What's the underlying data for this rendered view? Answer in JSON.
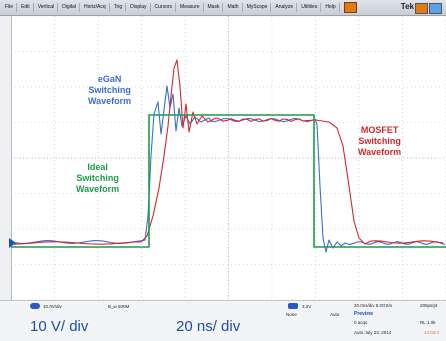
{
  "menubar": {
    "items": [
      "File",
      "Edit",
      "Vertical",
      "Digital",
      "Horiz/Acq",
      "Trig",
      "Display",
      "Cursors",
      "Measure",
      "Mask",
      "Math",
      "MyScope",
      "Analyze",
      "Utilities",
      "Help"
    ],
    "brand": "Tek"
  },
  "labels": {
    "egan": [
      "eGaN",
      "Switching",
      "Waveform"
    ],
    "ideal": [
      "Ideal",
      "Switching",
      "Waveform"
    ],
    "mosfet": [
      "MOSFET",
      "Switching",
      "Waveform"
    ]
  },
  "colors": {
    "egan": "#3a6fd0",
    "ideal": "#1e9a4a",
    "mosfet": "#d8282c",
    "grid": "#b9bec6"
  },
  "status": {
    "ch_scale": "10.0V/div",
    "bandwidth": "B_w 500M",
    "trigger_level": "3.2V",
    "trigger_mode": "None",
    "trigger_auto": "Auto",
    "sample_rate": "20.0ns/div  5.0GS/s",
    "record": "200ps/pt",
    "preview": "Preview",
    "acqs": "0 acqs",
    "rl": "RL:1.0k",
    "date_mode": "Auto   July 23, 2014",
    "time": "14:03:4",
    "big_volts": "10 V/ div",
    "big_time": "20 ns/ div"
  }
}
